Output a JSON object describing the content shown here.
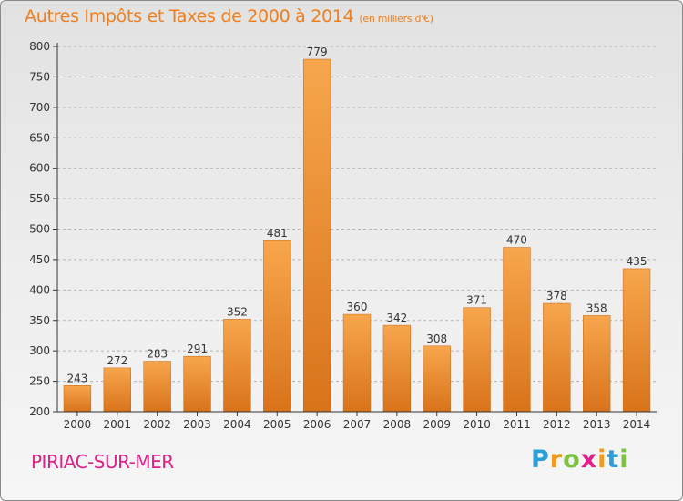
{
  "header": {
    "title": "Autres Impôts et Taxes de 2000 à 2014",
    "unit": "(en milliers d'€)"
  },
  "footer": {
    "commune": "PIRIAC-SUR-MER",
    "logo": {
      "letters": [
        "P",
        "r",
        "o",
        "x",
        "i",
        "t",
        "i"
      ],
      "colors": [
        "#2a9fd8",
        "#f29a1f",
        "#7cc242",
        "#e0218a",
        "#f29a1f",
        "#2a9fd8",
        "#7cc242"
      ]
    }
  },
  "colors": {
    "bar_light": "#f7a64d",
    "bar_dark": "#d9731a",
    "bar_edge": "#c86414",
    "grid": "#b5b5b5",
    "axis": "#333333",
    "title": "#f07e1e",
    "commune": "#e0218a"
  },
  "chart_data": {
    "type": "bar",
    "title": "Autres Impôts et Taxes de 2000 à 2014",
    "xlabel": "",
    "ylabel": "",
    "categories": [
      "2000",
      "2001",
      "2002",
      "2003",
      "2004",
      "2005",
      "2006",
      "2007",
      "2008",
      "2009",
      "2010",
      "2011",
      "2012",
      "2013",
      "2014"
    ],
    "values": [
      243,
      272,
      283,
      291,
      352,
      481,
      779,
      360,
      342,
      308,
      371,
      470,
      378,
      358,
      435
    ],
    "ylim": [
      200,
      800
    ],
    "yticks": [
      200,
      250,
      300,
      350,
      400,
      450,
      500,
      550,
      600,
      650,
      700,
      750,
      800
    ],
    "grid": true,
    "grid_style": "dashed horizontal",
    "legend": "none"
  }
}
